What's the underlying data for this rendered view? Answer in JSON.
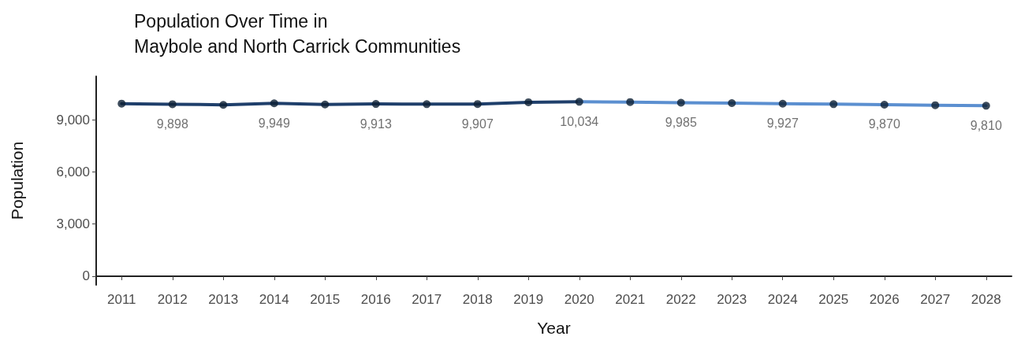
{
  "chart_data": {
    "type": "line",
    "title": "Population Over Time in\nMaybole and North Carrick Communities",
    "xlabel": "Year",
    "ylabel": "Population",
    "categories": [
      "2011",
      "2012",
      "2013",
      "2014",
      "2015",
      "2016",
      "2017",
      "2018",
      "2019",
      "2020",
      "2021",
      "2022",
      "2023",
      "2024",
      "2025",
      "2026",
      "2027",
      "2028"
    ],
    "series": [
      {
        "color": "#1f3f6b",
        "marker": "none",
        "values": [
          9930,
          9898,
          9860,
          9949,
          9880,
          9913,
          9900,
          9907,
          10010,
          10034,
          null,
          null,
          null,
          null,
          null,
          null,
          null,
          null
        ]
      },
      {
        "color": "#5b8fd0",
        "marker": "none",
        "values": [
          null,
          null,
          null,
          null,
          null,
          null,
          null,
          null,
          null,
          10034,
          10020,
          9985,
          9960,
          9927,
          9900,
          9870,
          9840,
          9810
        ]
      },
      {
        "type": "scatter",
        "color": "#0d1f33",
        "marker": "circle",
        "values": [
          9930,
          9898,
          9860,
          9949,
          9880,
          9913,
          9900,
          9907,
          10010,
          10034,
          10020,
          9985,
          9960,
          9927,
          9900,
          9870,
          9840,
          9810
        ],
        "value_labels": [
          null,
          "9,898",
          null,
          "9,949",
          null,
          "9,913",
          null,
          "9,907",
          null,
          "10,034",
          null,
          "9,985",
          null,
          "9,927",
          null,
          "9,870",
          null,
          "9,810"
        ]
      }
    ],
    "ylim": [
      -500,
      11500
    ],
    "yticks": [
      {
        "value": 0,
        "label": "0"
      },
      {
        "value": 3000,
        "label": "3,000"
      },
      {
        "value": 6000,
        "label": "6,000"
      },
      {
        "value": 9000,
        "label": "9,000"
      }
    ],
    "grid": false
  }
}
